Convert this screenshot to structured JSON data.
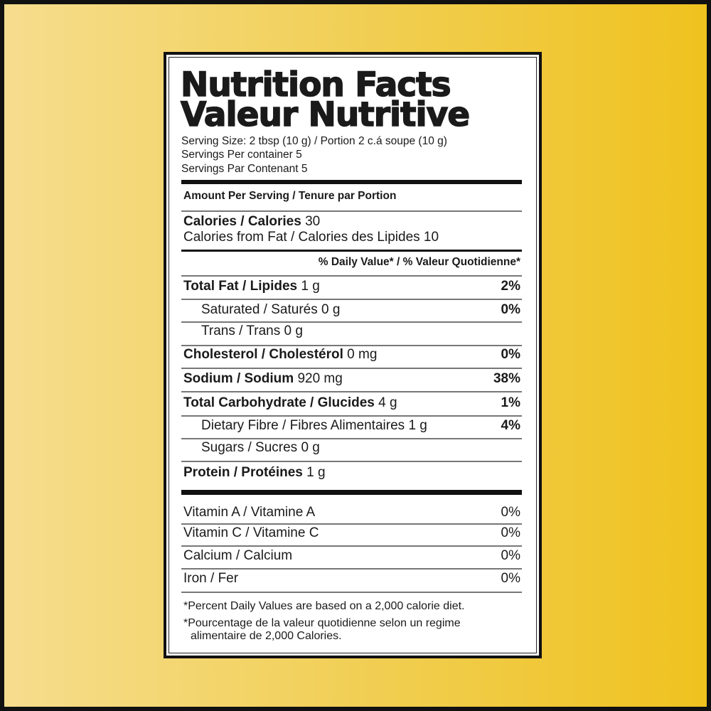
{
  "title_en": "Nutrition Facts",
  "title_fr": "Valeur Nutritive",
  "serving_size": "Serving Size: 2 tbsp (10 g) / Portion 2 c.á soupe (10 g)",
  "servings_en": "Servings Per container 5",
  "servings_fr": "Servings Par Contenant 5",
  "amount_header": "Amount Per Serving / Tenure par Portion",
  "calories": {
    "label": "Calories / Calories",
    "value": "30"
  },
  "calories_fat": "Calories from Fat / Calories des Lipides 10",
  "dv_header": "% Daily Value* / % Valeur Quotidienne*",
  "nutrients": [
    {
      "label": "Total Fat / Lipides",
      "amount": "1 g",
      "dv": "2%"
    },
    {
      "label": "Saturated / Saturés",
      "amount": "0 g",
      "dv": "0%"
    },
    {
      "label": "Trans / Trans",
      "amount": "0 g",
      "dv": ""
    },
    {
      "label": "Cholesterol / Cholestérol",
      "amount": "0 mg",
      "dv": "0%"
    },
    {
      "label": "Sodium / Sodium",
      "amount": "920 mg",
      "dv": "38%"
    },
    {
      "label": "Total Carbohydrate / Glucides",
      "amount": "4 g",
      "dv": "1%"
    },
    {
      "label": "Dietary Fibre / Fibres Alimentaires",
      "amount": "1 g",
      "dv": "4%"
    },
    {
      "label": "Sugars / Sucres",
      "amount": "0 g",
      "dv": ""
    },
    {
      "label": "Protein / Protéines",
      "amount": "1 g",
      "dv": ""
    }
  ],
  "vitamins": [
    {
      "label": "Vitamin A / Vitamine A",
      "dv": "0%"
    },
    {
      "label": "Vitamin C / Vitamine C",
      "dv": "0%"
    },
    {
      "label": "Calcium / Calcium",
      "dv": "0%"
    },
    {
      "label": "Iron / Fer",
      "dv": "0%"
    }
  ],
  "footnote_en": "*Percent Daily Values are based on a 2,000 calorie diet.",
  "footnote_fr_1": "*Pourcentage de la valeur quotidienne selon un regime",
  "footnote_fr_2": "alimentaire de 2,000 Calories.",
  "colors": {
    "background_light": "#f6dd8e",
    "background_dark": "#efc21f",
    "ink": "#1a1a1a"
  }
}
